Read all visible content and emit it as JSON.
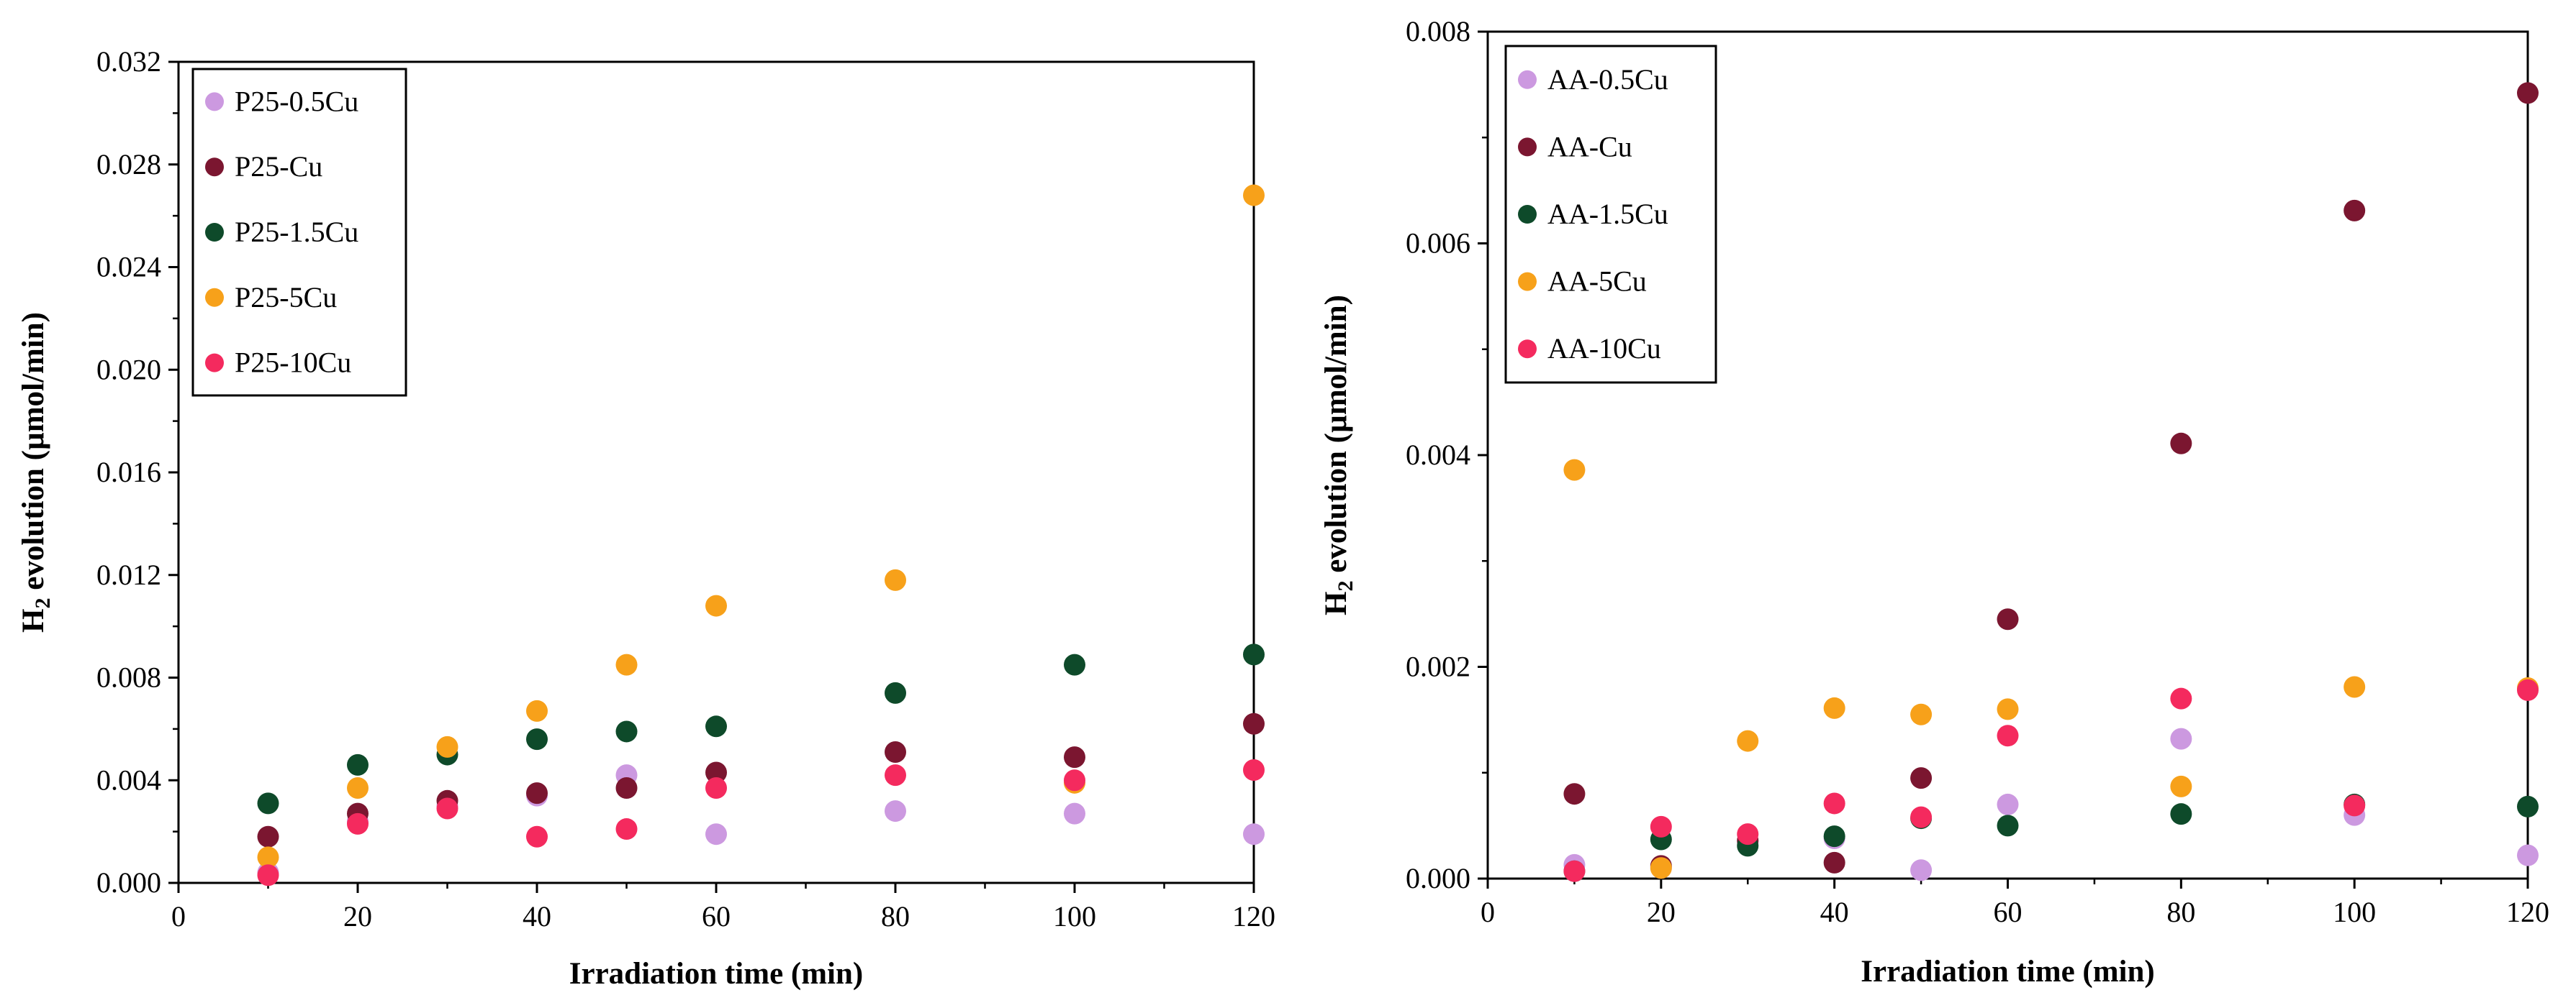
{
  "chart_data": [
    {
      "type": "scatter",
      "title": "",
      "xlabel": "Irradiation time (min)",
      "ylabel_main": "H",
      "ylabel_sub": "2",
      "ylabel_rest": " evolution (µmol/min)",
      "xlim": [
        0,
        120
      ],
      "ylim": [
        0,
        0.032
      ],
      "xticks": [
        "0",
        "20",
        "40",
        "60",
        "80",
        "100",
        "120"
      ],
      "yticks": [
        "0.000",
        "0.004",
        "0.008",
        "0.012",
        "0.016",
        "0.020",
        "0.024",
        "0.028",
        "0.032"
      ],
      "grid": false,
      "legend_position": "top-left",
      "series": [
        {
          "name": "P25-0.5Cu",
          "color": "#CC99E0",
          "x": [
            10,
            20,
            30,
            40,
            50,
            60,
            80,
            100,
            120
          ],
          "y": [
            0.0004,
            0.0024,
            0.003,
            0.0034,
            0.0042,
            0.0019,
            0.0028,
            0.0027,
            0.0019
          ]
        },
        {
          "name": "P25-Cu",
          "color": "#7B1630",
          "x": [
            10,
            20,
            30,
            40,
            50,
            60,
            80,
            100,
            120
          ],
          "y": [
            0.0018,
            0.0027,
            0.0032,
            0.0035,
            0.0037,
            0.0043,
            0.0051,
            0.0049,
            0.0062
          ]
        },
        {
          "name": "P25-1.5Cu",
          "color": "#0E4A2A",
          "x": [
            10,
            20,
            30,
            40,
            50,
            60,
            80,
            100,
            120
          ],
          "y": [
            0.0031,
            0.0046,
            0.005,
            0.0056,
            0.0059,
            0.0061,
            0.0074,
            0.0085,
            0.0089
          ]
        },
        {
          "name": "P25-5Cu",
          "color": "#F7A11A",
          "x": [
            10,
            20,
            30,
            40,
            50,
            60,
            80,
            100,
            120
          ],
          "y": [
            0.001,
            0.0037,
            0.0053,
            0.0067,
            0.0085,
            0.0108,
            0.0118,
            0.0039,
            0.0268
          ]
        },
        {
          "name": "P25-10Cu",
          "color": "#F42A5E",
          "x": [
            10,
            20,
            30,
            40,
            50,
            60,
            80,
            100,
            120
          ],
          "y": [
            0.0003,
            0.0023,
            0.0029,
            0.0018,
            0.0021,
            0.0037,
            0.0042,
            0.004,
            0.0044
          ]
        }
      ]
    },
    {
      "type": "scatter",
      "title": "",
      "xlabel": "Irradiation time (min)",
      "ylabel_main": "H",
      "ylabel_sub": "2",
      "ylabel_rest": " evolution (µmol/min)",
      "xlim": [
        0,
        120
      ],
      "ylim": [
        0,
        0.008
      ],
      "xticks": [
        "0",
        "20",
        "40",
        "60",
        "80",
        "100",
        "120"
      ],
      "yticks": [
        "0.000",
        "0.002",
        "0.004",
        "0.006",
        "0.008"
      ],
      "grid": false,
      "legend_position": "top-left",
      "series": [
        {
          "name": "AA-0.5Cu",
          "color": "#CC99E0",
          "x": [
            10,
            20,
            30,
            40,
            50,
            60,
            80,
            100,
            120
          ],
          "y": [
            0.00013,
            0.0001,
            0.00035,
            0.00038,
            8e-05,
            0.0007,
            0.00132,
            0.0006,
            0.00022
          ]
        },
        {
          "name": "AA-Cu",
          "color": "#7B1630",
          "x": [
            10,
            20,
            30,
            40,
            50,
            60,
            80,
            100,
            120
          ],
          "y": [
            0.0008,
            0.00012,
            0.00036,
            0.00015,
            0.00095,
            0.00245,
            0.00411,
            0.00631,
            0.00742
          ]
        },
        {
          "name": "AA-1.5Cu",
          "color": "#0E4A2A",
          "x": [
            10,
            20,
            30,
            40,
            50,
            60,
            80,
            100,
            120
          ],
          "y": [
            7e-05,
            0.00037,
            0.00031,
            0.0004,
            0.00057,
            0.0005,
            0.00061,
            0.0007,
            0.00068
          ]
        },
        {
          "name": "AA-5Cu",
          "color": "#F7A11A",
          "x": [
            10,
            20,
            30,
            40,
            50,
            60,
            80,
            100,
            120
          ],
          "y": [
            0.00386,
            0.0001,
            0.0013,
            0.00161,
            0.00155,
            0.0016,
            0.00087,
            0.00181,
            0.0018
          ]
        },
        {
          "name": "AA-10Cu",
          "color": "#F42A5E",
          "x": [
            10,
            20,
            30,
            40,
            50,
            60,
            80,
            100,
            120
          ],
          "y": [
            7e-05,
            0.00049,
            0.00042,
            0.00071,
            0.00058,
            0.00135,
            0.0017,
            0.00069,
            0.00178
          ]
        }
      ]
    }
  ]
}
